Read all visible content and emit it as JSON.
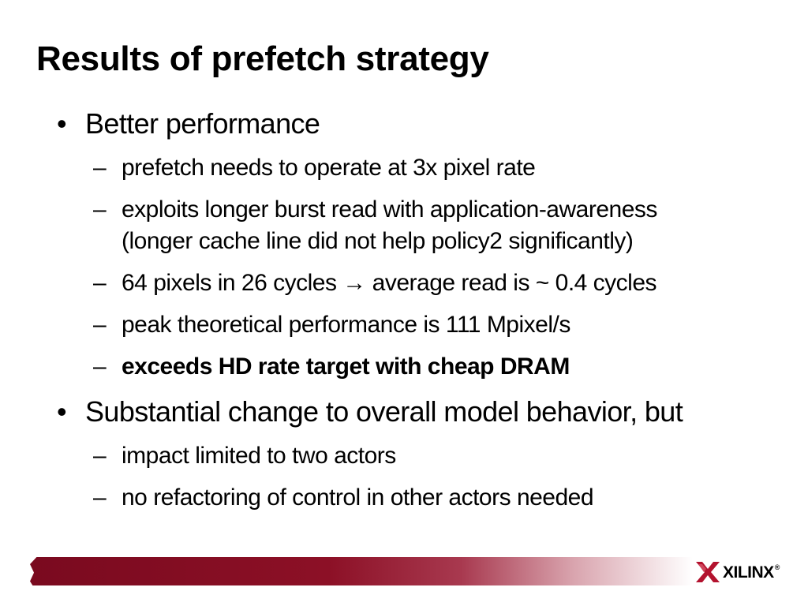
{
  "slide": {
    "title": "Results of prefetch strategy",
    "bullets": [
      {
        "marker": "•",
        "text": "Better performance",
        "sub": [
          {
            "marker": "–",
            "text": "prefetch needs to operate at 3x pixel rate"
          },
          {
            "marker": "–",
            "lines": [
              "exploits longer burst read with application-awareness",
              "(longer cache line did not help policy2 significantly)"
            ]
          },
          {
            "marker": "–",
            "text": "64 pixels in 26 cycles → average read is ~ 0.4 cycles"
          },
          {
            "marker": "–",
            "text": "peak theoretical performance is 111 Mpixel/s"
          },
          {
            "marker": "–",
            "text": "exceeds HD rate target with cheap DRAM",
            "bold": true
          }
        ]
      },
      {
        "marker": "•",
        "text": "Substantial change to overall model behavior, but",
        "sub": [
          {
            "marker": "–",
            "text": "impact limited to two actors"
          },
          {
            "marker": "–",
            "text": "no refactoring of control in other actors needed"
          }
        ]
      }
    ]
  },
  "footer": {
    "logo_text": "XILINX",
    "logo_reg": "®",
    "logo_icon": "xilinx-x-logo-icon",
    "bar_color": "#8c1026",
    "logo_mark_color": "#b3122e"
  }
}
